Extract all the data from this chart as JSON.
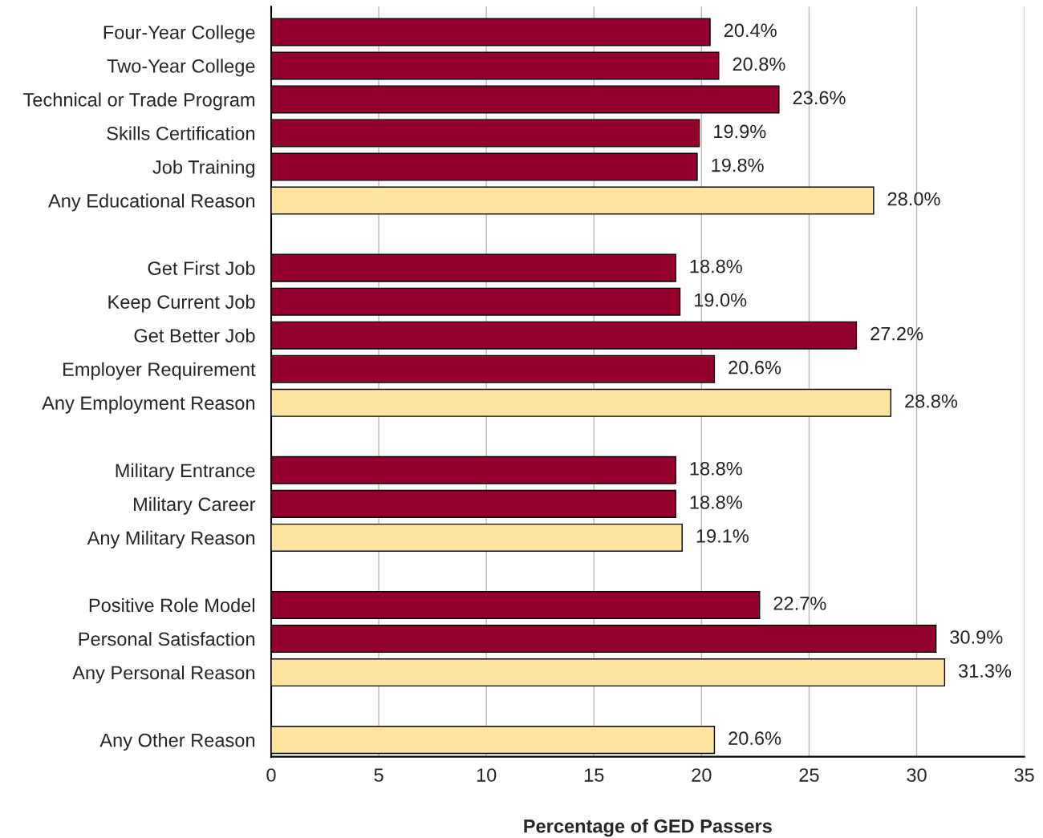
{
  "chart_data": {
    "type": "bar",
    "orientation": "horizontal",
    "xlabel": "Percentage of GED Passers",
    "categories": [
      "Four-Year College",
      "Two-Year College",
      "Technical or Trade Program",
      "Skills Certification",
      "Job Training",
      "Any Educational Reason",
      null,
      "Get First Job",
      "Keep Current Job",
      "Get Better Job",
      "Employer Requirement",
      "Any Employment Reason",
      null,
      "Military Entrance",
      "Military Career",
      "Any Military Reason",
      null,
      "Positive Role Model",
      "Personal Satisfaction",
      "Any Personal Reason",
      null,
      "Any Other Reason"
    ],
    "values": [
      20.4,
      20.8,
      23.6,
      19.9,
      19.8,
      28.0,
      null,
      18.8,
      19.0,
      27.2,
      20.6,
      28.8,
      null,
      18.8,
      18.8,
      19.1,
      null,
      22.7,
      30.9,
      31.3,
      null,
      20.6
    ],
    "value_labels": [
      "20.4%",
      "20.8%",
      "23.6%",
      "19.9%",
      "19.8%",
      "28.0%",
      null,
      "18.8%",
      "19.0%",
      "27.2%",
      "20.6%",
      "28.8%",
      null,
      "18.8%",
      "18.8%",
      "19.1%",
      null,
      "22.7%",
      "30.9%",
      "31.3%",
      null,
      "20.6%"
    ],
    "colors": [
      "#93002b",
      "#93002b",
      "#93002b",
      "#93002b",
      "#93002b",
      "#ffe4a0",
      null,
      "#93002b",
      "#93002b",
      "#93002b",
      "#93002b",
      "#ffe4a0",
      null,
      "#93002b",
      "#93002b",
      "#ffe4a0",
      null,
      "#93002b",
      "#93002b",
      "#ffe4a0",
      null,
      "#ffe4a0"
    ],
    "xlim": [
      0,
      35
    ],
    "xticks": [
      0,
      5,
      10,
      15,
      20,
      25,
      30,
      35
    ],
    "grid": "x"
  }
}
